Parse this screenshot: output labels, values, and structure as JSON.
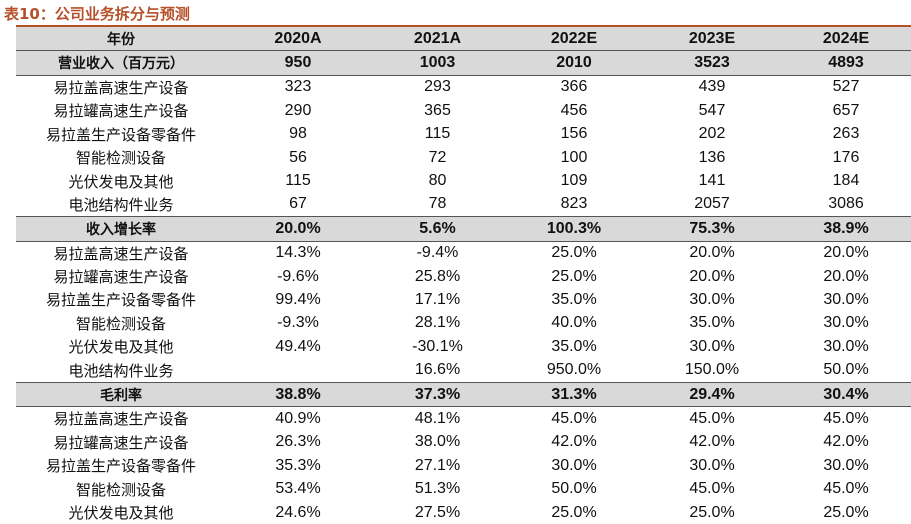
{
  "title": "表10：公司业务拆分与预测",
  "header": [
    "年份",
    "2020A",
    "2021A",
    "2022E",
    "2023E",
    "2024E"
  ],
  "rows": [
    {
      "type": "sec",
      "cells": [
        "营业收入（百万元）",
        "950",
        "1003",
        "2010",
        "3523",
        "4893"
      ]
    },
    {
      "type": "row",
      "cells": [
        "易拉盖高速生产设备",
        "323",
        "293",
        "366",
        "439",
        "527"
      ]
    },
    {
      "type": "row",
      "cells": [
        "易拉罐高速生产设备",
        "290",
        "365",
        "456",
        "547",
        "657"
      ]
    },
    {
      "type": "row",
      "cells": [
        "易拉盖生产设备零备件",
        "98",
        "115",
        "156",
        "202",
        "263"
      ]
    },
    {
      "type": "row",
      "cells": [
        "智能检测设备",
        "56",
        "72",
        "100",
        "136",
        "176"
      ]
    },
    {
      "type": "row",
      "cells": [
        "光伏发电及其他",
        "115",
        "80",
        "109",
        "141",
        "184"
      ]
    },
    {
      "type": "row",
      "cells": [
        "电池结构件业务",
        "67",
        "78",
        "823",
        "2057",
        "3086"
      ]
    },
    {
      "type": "sec",
      "cells": [
        "收入增长率",
        "20.0%",
        "5.6%",
        "100.3%",
        "75.3%",
        "38.9%"
      ]
    },
    {
      "type": "row",
      "cells": [
        "易拉盖高速生产设备",
        "14.3%",
        "-9.4%",
        "25.0%",
        "20.0%",
        "20.0%"
      ]
    },
    {
      "type": "row",
      "cells": [
        "易拉罐高速生产设备",
        "-9.6%",
        "25.8%",
        "25.0%",
        "20.0%",
        "20.0%"
      ]
    },
    {
      "type": "row",
      "cells": [
        "易拉盖生产设备零备件",
        "99.4%",
        "17.1%",
        "35.0%",
        "30.0%",
        "30.0%"
      ]
    },
    {
      "type": "row",
      "cells": [
        "智能检测设备",
        "-9.3%",
        "28.1%",
        "40.0%",
        "35.0%",
        "30.0%"
      ]
    },
    {
      "type": "row",
      "cells": [
        "光伏发电及其他",
        "49.4%",
        "-30.1%",
        "35.0%",
        "30.0%",
        "30.0%"
      ]
    },
    {
      "type": "row",
      "cells": [
        "电池结构件业务",
        "",
        "16.6%",
        "950.0%",
        "150.0%",
        "50.0%"
      ]
    },
    {
      "type": "sec",
      "cells": [
        "毛利率",
        "38.8%",
        "37.3%",
        "31.3%",
        "29.4%",
        "30.4%"
      ]
    },
    {
      "type": "row",
      "cells": [
        "易拉盖高速生产设备",
        "40.9%",
        "48.1%",
        "45.0%",
        "45.0%",
        "45.0%"
      ]
    },
    {
      "type": "row",
      "cells": [
        "易拉罐高速生产设备",
        "26.3%",
        "38.0%",
        "42.0%",
        "42.0%",
        "42.0%"
      ]
    },
    {
      "type": "row",
      "cells": [
        "易拉盖生产设备零备件",
        "35.3%",
        "27.1%",
        "30.0%",
        "30.0%",
        "30.0%"
      ]
    },
    {
      "type": "row",
      "cells": [
        "智能检测设备",
        "53.4%",
        "51.3%",
        "50.0%",
        "45.0%",
        "45.0%"
      ]
    },
    {
      "type": "row",
      "cells": [
        "光伏发电及其他",
        "24.6%",
        "27.5%",
        "25.0%",
        "25.0%",
        "25.0%"
      ]
    }
  ]
}
